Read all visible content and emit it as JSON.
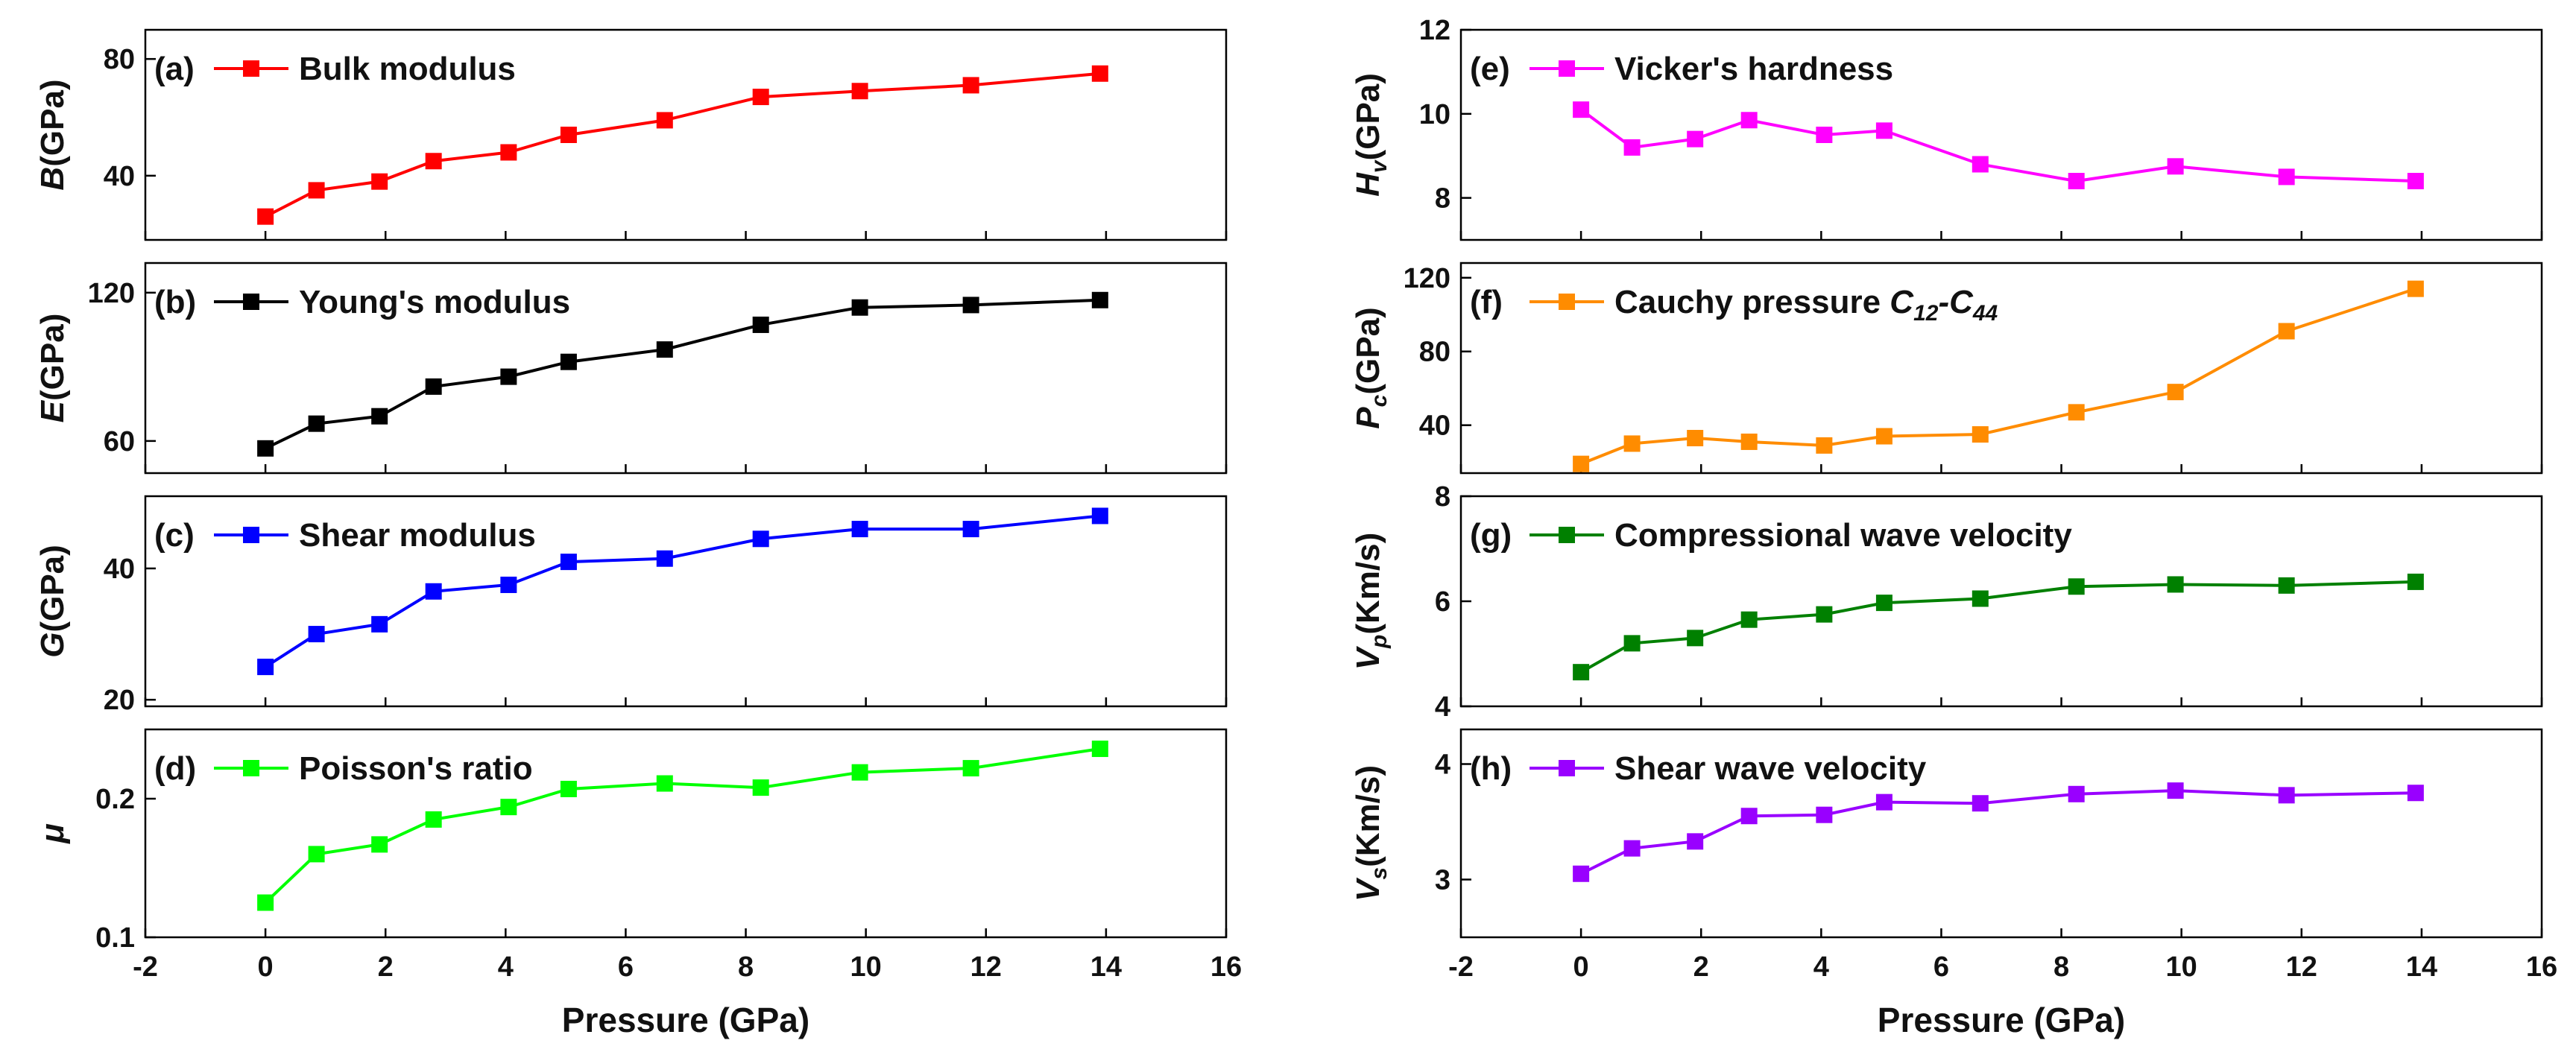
{
  "chart_data": [
    {
      "id": "a",
      "type": "line",
      "panel_letter": "(a)",
      "ylabel": {
        "symbol": "B",
        "subscript": "",
        "unit": "(GPa)"
      },
      "yticks": [
        "40",
        "80"
      ],
      "ytick_values": [
        40,
        80
      ],
      "ylim": [
        18,
        90
      ],
      "series": [
        {
          "name": "Bulk modulus",
          "color": "#ff0000",
          "marker": "square",
          "x": [
            0,
            0.85,
            1.9,
            2.8,
            4.05,
            5.05,
            6.65,
            8.25,
            9.9,
            11.75,
            13.9
          ],
          "y": [
            26,
            35,
            38,
            45,
            48,
            54,
            59,
            67,
            69,
            71,
            75
          ]
        }
      ]
    },
    {
      "id": "b",
      "type": "line",
      "panel_letter": "(b)",
      "ylabel": {
        "symbol": "E",
        "subscript": "",
        "unit": "(GPa)"
      },
      "yticks": [
        "60",
        "120"
      ],
      "ytick_values": [
        60,
        120
      ],
      "ylim": [
        47,
        132
      ],
      "series": [
        {
          "name": "Young's modulus",
          "color": "#000000",
          "marker": "square",
          "x": [
            0,
            0.85,
            1.9,
            2.8,
            4.05,
            5.05,
            6.65,
            8.25,
            9.9,
            11.75,
            13.9
          ],
          "y": [
            57,
            67,
            70,
            82,
            86,
            92,
            97,
            107,
            114,
            115,
            117
          ]
        }
      ]
    },
    {
      "id": "c",
      "type": "line",
      "panel_letter": "(c)",
      "ylabel": {
        "symbol": "G",
        "subscript": "",
        "unit": "(GPa)"
      },
      "yticks": [
        "20",
        "40"
      ],
      "ytick_values": [
        20,
        40
      ],
      "ylim": [
        19,
        51
      ],
      "series": [
        {
          "name": "Shear modulus",
          "color": "#0000ff",
          "marker": "square",
          "x": [
            0,
            0.85,
            1.9,
            2.8,
            4.05,
            5.05,
            6.65,
            8.25,
            9.9,
            11.75,
            13.9
          ],
          "y": [
            25,
            30,
            31.5,
            36.5,
            37.5,
            41,
            41.5,
            44.5,
            46,
            46,
            48
          ]
        }
      ]
    },
    {
      "id": "d",
      "type": "line",
      "panel_letter": "(d)",
      "ylabel": {
        "symbol": "μ",
        "subscript": "",
        "unit": ""
      },
      "yticks": [
        "0.1",
        "0.2"
      ],
      "ytick_values": [
        0.1,
        0.2
      ],
      "ylim": [
        0.1,
        0.25
      ],
      "series": [
        {
          "name": "Poisson's ratio",
          "color": "#00ff00",
          "marker": "square",
          "x": [
            0,
            0.85,
            1.9,
            2.8,
            4.05,
            5.05,
            6.65,
            8.25,
            9.9,
            11.75,
            13.9
          ],
          "y": [
            0.125,
            0.16,
            0.167,
            0.185,
            0.194,
            0.207,
            0.211,
            0.208,
            0.219,
            0.222,
            0.236
          ]
        }
      ]
    },
    {
      "id": "e",
      "type": "line",
      "panel_letter": "(e)",
      "ylabel": {
        "symbol": "H",
        "subscript": "v",
        "unit": "(GPa)"
      },
      "yticks": [
        "8",
        "10",
        "12"
      ],
      "ytick_values": [
        8,
        10,
        12
      ],
      "ylim": [
        7,
        12
      ],
      "series": [
        {
          "name": "Vicker's hardness",
          "color": "#ff00ff",
          "marker": "square",
          "x": [
            0,
            0.85,
            1.9,
            2.8,
            4.05,
            5.05,
            6.65,
            8.25,
            9.9,
            11.75,
            13.9
          ],
          "y": [
            10.1,
            9.2,
            9.4,
            9.85,
            9.5,
            9.6,
            8.8,
            8.4,
            8.75,
            8.5,
            8.4
          ]
        }
      ]
    },
    {
      "id": "f",
      "type": "line",
      "panel_letter": "(f)",
      "ylabel": {
        "symbol": "P",
        "subscript": "c",
        "unit": "(GPa)"
      },
      "yticks": [
        "40",
        "80",
        "120"
      ],
      "ytick_values": [
        40,
        80,
        120
      ],
      "ylim": [
        14,
        128
      ],
      "series": [
        {
          "name": "Cauchy pressure ",
          "name_sub1": "12",
          "name_mid": "-C",
          "name_sub2": "44",
          "name_c": "C",
          "color": "#ff8c00",
          "marker": "square",
          "x": [
            0,
            0.85,
            1.9,
            2.8,
            4.05,
            5.05,
            6.65,
            8.25,
            9.9,
            11.75,
            13.9
          ],
          "y": [
            19,
            30,
            33,
            31,
            29,
            34,
            35,
            47,
            58,
            91,
            114
          ]
        }
      ]
    },
    {
      "id": "g",
      "type": "line",
      "panel_letter": "(g)",
      "ylabel": {
        "symbol": "V",
        "subscript": "p",
        "unit": "(Km/s)"
      },
      "yticks": [
        "4",
        "6",
        "8"
      ],
      "ytick_values": [
        4,
        6,
        8
      ],
      "ylim": [
        4,
        8
      ],
      "series": [
        {
          "name": "Compressional wave velocity",
          "color": "#008000",
          "marker": "square",
          "x": [
            0,
            0.85,
            1.9,
            2.8,
            4.05,
            5.05,
            6.65,
            8.25,
            9.9,
            11.75,
            13.9
          ],
          "y": [
            4.65,
            5.2,
            5.3,
            5.65,
            5.75,
            5.97,
            6.05,
            6.28,
            6.32,
            6.3,
            6.37
          ]
        }
      ]
    },
    {
      "id": "h",
      "type": "line",
      "panel_letter": "(h)",
      "ylabel": {
        "symbol": "V",
        "subscript": "s",
        "unit": "(Km/s)"
      },
      "yticks": [
        "3",
        "4"
      ],
      "ytick_values": [
        3,
        4
      ],
      "ylim": [
        2.5,
        4.3
      ],
      "series": [
        {
          "name": "Shear wave velocity",
          "color": "#9900ff",
          "marker": "square",
          "x": [
            0,
            0.85,
            1.9,
            2.8,
            4.05,
            5.05,
            6.65,
            8.25,
            9.9,
            11.75,
            13.9
          ],
          "y": [
            3.05,
            3.27,
            3.33,
            3.55,
            3.56,
            3.67,
            3.66,
            3.74,
            3.77,
            3.73,
            3.75
          ]
        }
      ]
    }
  ],
  "shared_x_axis": {
    "xlabel": "Pressure (GPa)",
    "xticks": [
      "-2",
      "0",
      "2",
      "4",
      "6",
      "8",
      "10",
      "12",
      "14",
      "16"
    ],
    "xtick_values": [
      -2,
      0,
      2,
      4,
      6,
      8,
      10,
      12,
      14,
      16
    ],
    "xlim": [
      -2,
      16
    ]
  }
}
